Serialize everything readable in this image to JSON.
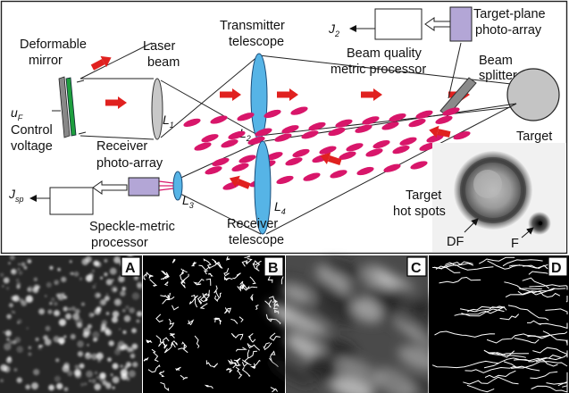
{
  "schematic": {
    "deformable_mirror": [
      "Deformable",
      "mirror"
    ],
    "control_voltage": [
      "Control",
      "voltage"
    ],
    "u_symbol": "u",
    "u_subscript": "F",
    "laser_beam": [
      "Laser",
      "beam"
    ],
    "lens_L1": {
      "symbol": "L",
      "sub": "1"
    },
    "transmitter_telescope": [
      "Transmitter",
      "telescope"
    ],
    "lens_L2": {
      "symbol": "L",
      "sub": "2"
    },
    "J2": {
      "symbol": "J",
      "sub": "2"
    },
    "beam_quality_processor": [
      "Beam quality",
      "metric processor"
    ],
    "target_plane_array": [
      "Target-plane",
      "photo-array"
    ],
    "beam_splitter": [
      "Beam",
      "splitter"
    ],
    "target": "Target",
    "receiver_photo_array": [
      "Receiver",
      "photo-array"
    ],
    "lens_L3": {
      "symbol": "L",
      "sub": "3"
    },
    "lens_L4": {
      "symbol": "L",
      "sub": "4"
    },
    "Jsp": {
      "symbol": "J",
      "sub": "sp"
    },
    "speckle_processor": [
      "Speckle-metric",
      "processor"
    ],
    "receiver_telescope": [
      "Receiver",
      "telescope"
    ],
    "target_hot_spots": [
      "Target",
      "hot spots"
    ],
    "df_label": "DF",
    "f_label": "F"
  },
  "panels": [
    {
      "letter": "A"
    },
    {
      "letter": "B"
    },
    {
      "letter": "C"
    },
    {
      "letter": "D"
    }
  ],
  "colors": {
    "beam_arrow": "#e0211f",
    "lens": "#56b4e6",
    "ellipse": "#d8166a",
    "photo_array": "#b3a6d6",
    "mirror_green": "#1e9e3e"
  }
}
